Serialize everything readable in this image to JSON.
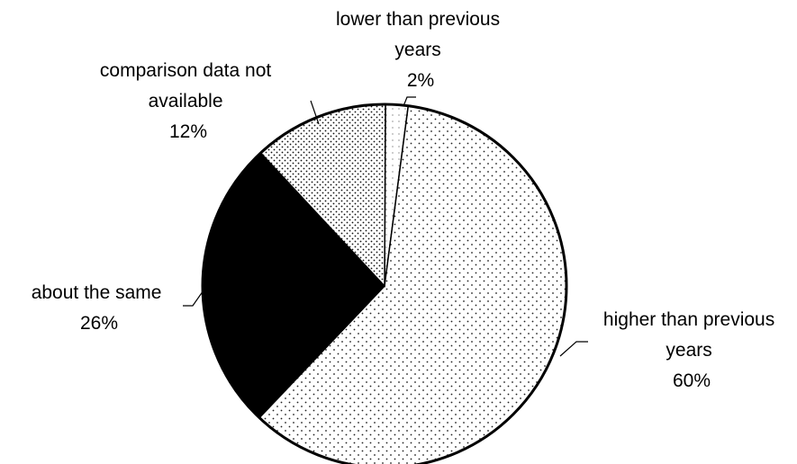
{
  "chart_data": {
    "type": "pie",
    "title": "",
    "slices": [
      {
        "name": "lower than previous years",
        "label_lines": [
          "lower than previous",
          "years"
        ],
        "value_label": "2%",
        "value": 2,
        "fill": "dots-light",
        "color": "#ffffff"
      },
      {
        "name": "higher than previous years",
        "label_lines": [
          "higher than previous",
          "years"
        ],
        "value_label": "60%",
        "value": 60,
        "fill": "dots-sparse",
        "color": "#ffffff"
      },
      {
        "name": "about the same",
        "label_lines": [
          "about the same"
        ],
        "value_label": "26%",
        "value": 26,
        "fill": "solid",
        "color": "#000000"
      },
      {
        "name": "comparison data not available",
        "label_lines": [
          "comparison data not",
          "available"
        ],
        "value_label": "12%",
        "value": 12,
        "fill": "dots-dense",
        "color": "#ffffff"
      }
    ]
  }
}
